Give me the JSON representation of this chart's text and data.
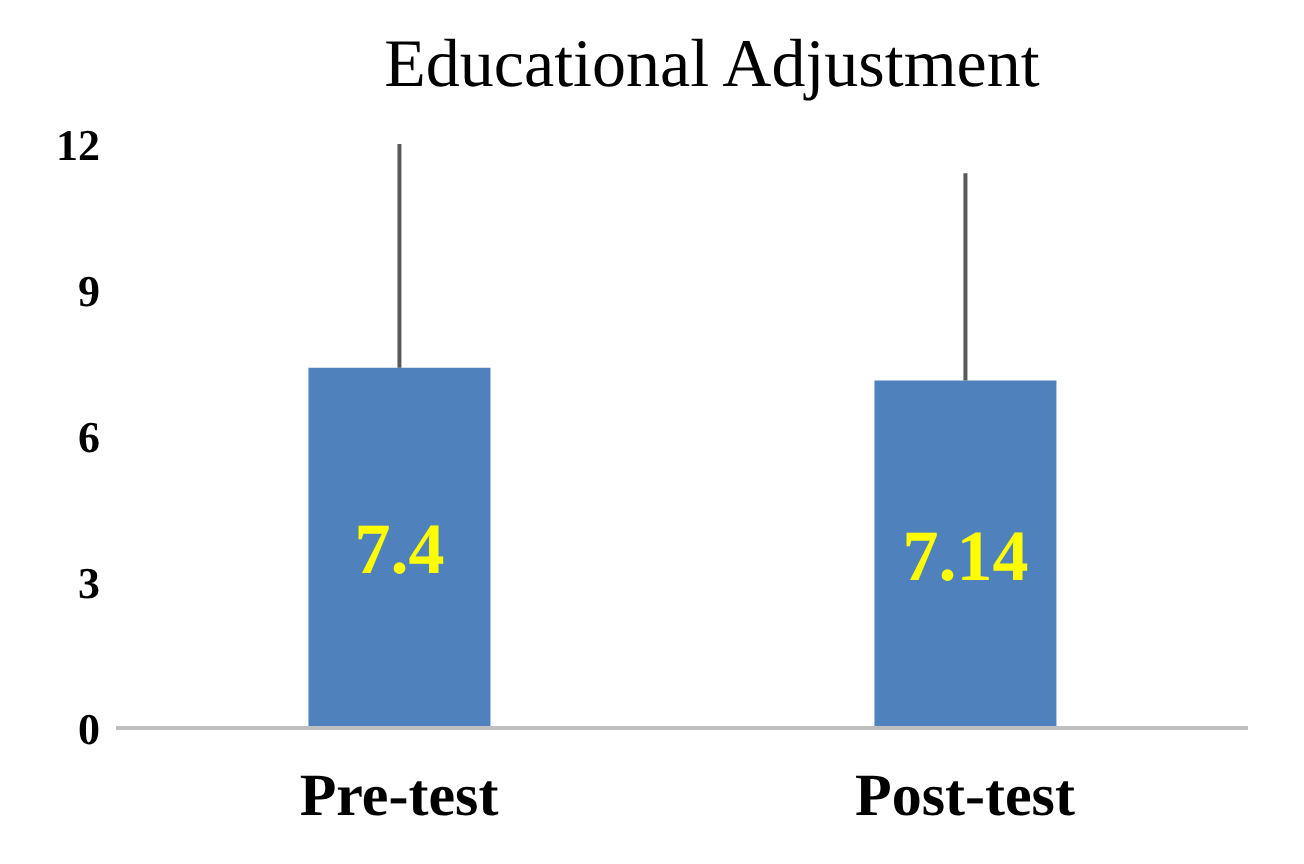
{
  "chart_data": {
    "type": "bar",
    "title": "Educational  Adjustment",
    "categories": [
      "Pre-test",
      "Post-test"
    ],
    "values": [
      7.4,
      7.14
    ],
    "color": "#4f81bd",
    "errors": [
      [
        7.4,
        12
      ],
      [
        7.14,
        11.4
      ]
    ],
    "ylim": [
      0,
      12
    ],
    "yticks": [
      0,
      3,
      6,
      9,
      12
    ],
    "grid": false,
    "data_labels": true
  }
}
